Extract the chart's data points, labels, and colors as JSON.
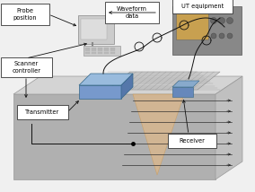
{
  "bg_color": "#f0f0f0",
  "labels": {
    "probe_position": "Probe\nposition",
    "waveform_data": "Waveform\ndata",
    "ut_equipment": "UT equipment",
    "scanner_controller": "Scanner\ncontroller",
    "transmitter": "Transmitter",
    "receiver": "Receiver"
  },
  "platform_top_color": "#d8d8d8",
  "platform_front_color": "#b8b8b8",
  "platform_right_color": "#c8c8c8",
  "scan_mesh_color": "#b0b0b0",
  "transmitter_body_color": "#7799cc",
  "transmitter_top_color": "#99bbdd",
  "receiver_color": "#6688bb",
  "beam_color": "#ddb88a",
  "wave_color": "#222222",
  "label_box_color": "#ffffff",
  "label_box_edge": "#333333",
  "cable_color": "#111111",
  "arrow_color": "#111111"
}
